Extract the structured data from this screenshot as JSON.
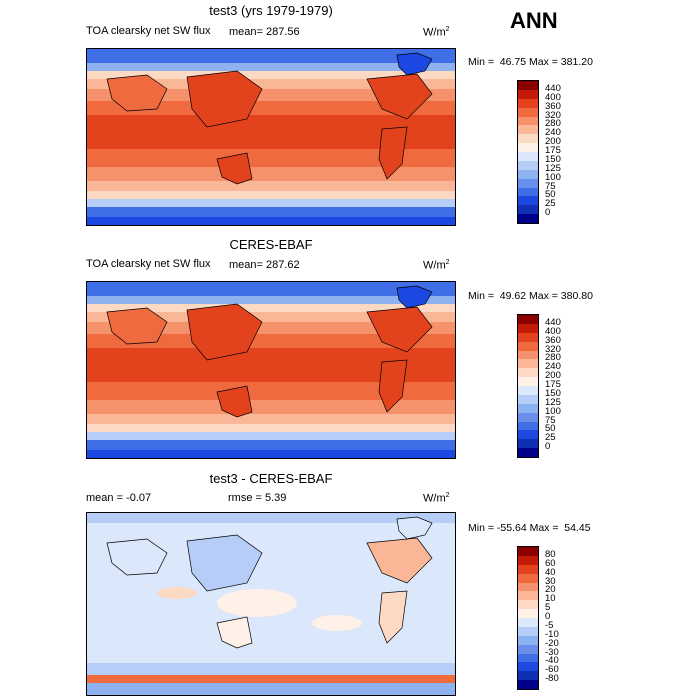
{
  "season": "ANN",
  "panels": [
    {
      "title": "test3 (yrs 1979-1979)",
      "variable": "TOA clearsky net SW flux",
      "stat_text": "mean=  287.56",
      "units": "W/m",
      "units_sup": "2",
      "minmax": "Min =  46.75 Max = 381.20",
      "levels": [
        "440",
        "400",
        "360",
        "320",
        "280",
        "240",
        "200",
        "175",
        "150",
        "125",
        "100",
        "75",
        "50",
        "25",
        "0"
      ],
      "colors": [
        "#8b0000",
        "#c41a0a",
        "#e2431c",
        "#ef6a3f",
        "#f6926b",
        "#fab797",
        "#fcd9c3",
        "#fff0e8",
        "#dbe7fb",
        "#b6cef7",
        "#8eb1f0",
        "#6890ea",
        "#3f6ee6",
        "#1a48e0",
        "#0f2fb5",
        "#00008b"
      ]
    },
    {
      "title": "CERES-EBAF",
      "variable": "TOA clearsky net SW flux",
      "stat_text": "mean=  287.62",
      "units": "W/m",
      "units_sup": "2",
      "minmax": "Min =  49.62 Max = 380.80",
      "levels": [
        "440",
        "400",
        "360",
        "320",
        "280",
        "240",
        "200",
        "175",
        "150",
        "125",
        "100",
        "75",
        "50",
        "25",
        "0"
      ],
      "colors": [
        "#8b0000",
        "#c41a0a",
        "#e2431c",
        "#ef6a3f",
        "#f6926b",
        "#fab797",
        "#fcd9c3",
        "#fff0e8",
        "#dbe7fb",
        "#b6cef7",
        "#8eb1f0",
        "#6890ea",
        "#3f6ee6",
        "#1a48e0",
        "#0f2fb5",
        "#00008b"
      ]
    },
    {
      "title": "test3 - CERES-EBAF",
      "mean_text": "mean =   -0.07",
      "rmse_text": "rmse =    5.39",
      "units": "W/m",
      "units_sup": "2",
      "minmax": "Min = -55.64 Max =  54.45",
      "levels": [
        "80",
        "60",
        "40",
        "30",
        "20",
        "10",
        "5",
        "0",
        "-5",
        "-10",
        "-20",
        "-30",
        "-40",
        "-60",
        "-80"
      ],
      "colors": [
        "#8b0000",
        "#c41a0a",
        "#e2431c",
        "#ef6a3f",
        "#f6926b",
        "#fab797",
        "#fcd9c3",
        "#fff0e8",
        "#dbe7fb",
        "#b6cef7",
        "#8eb1f0",
        "#6890ea",
        "#3f6ee6",
        "#1a48e0",
        "#0f2fb5",
        "#00008b"
      ]
    }
  ]
}
